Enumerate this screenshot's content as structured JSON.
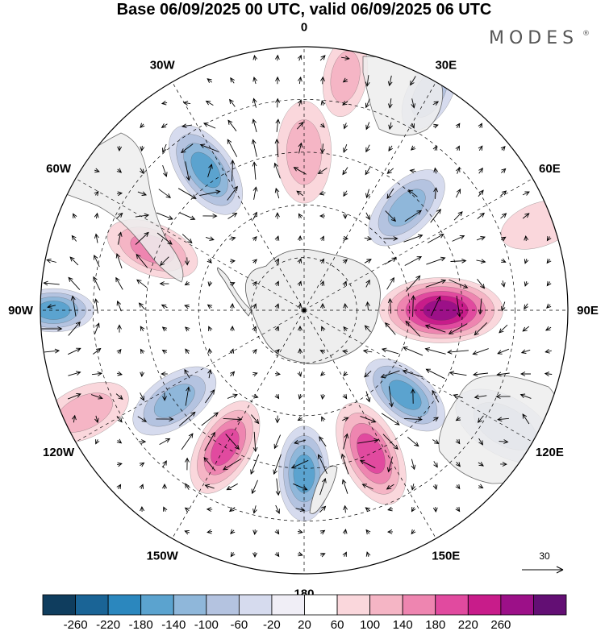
{
  "title": "Base 06/09/2025 00 UTC, valid 06/09/2025 06 UTC",
  "brand": {
    "name": "MODES",
    "mark": "®"
  },
  "longitude_labels": [
    {
      "lon": 0,
      "text": "0"
    },
    {
      "lon": 30,
      "text": "30E"
    },
    {
      "lon": 60,
      "text": "60E"
    },
    {
      "lon": 90,
      "text": "90E"
    },
    {
      "lon": 120,
      "text": "120E"
    },
    {
      "lon": 150,
      "text": "150E"
    },
    {
      "lon": 180,
      "text": "180"
    },
    {
      "lon": -150,
      "text": "150W"
    },
    {
      "lon": -120,
      "text": "120W"
    },
    {
      "lon": -90,
      "text": "90W"
    },
    {
      "lon": -60,
      "text": "60W"
    },
    {
      "lon": -30,
      "text": "30W"
    }
  ],
  "reference_vector": {
    "magnitude": "30"
  },
  "colorbar": {
    "colors": [
      "#0f3d5e",
      "#1a6496",
      "#2b87be",
      "#5ba3cf",
      "#8fb7da",
      "#b4c3e0",
      "#d6dbee",
      "#f0eef6",
      "#ffffff",
      "#fad7dc",
      "#f5b5c5",
      "#ee85b0",
      "#e14a9f",
      "#c81c8a",
      "#9c1088",
      "#630f74"
    ],
    "labels": [
      "-260",
      "-220",
      "-180",
      "-140",
      "-100",
      "-60",
      "-20",
      "20",
      "60",
      "100",
      "140",
      "180",
      "220",
      "260"
    ]
  },
  "field": {
    "description_variable": "geopotential height anomaly with wind vectors",
    "anomalies": [
      {
        "lon": 90,
        "lat_ring": 0.52,
        "value": 220,
        "spread": 0.16
      },
      {
        "lon": 130,
        "lat_ring": 0.5,
        "value": -160,
        "spread": 0.12
      },
      {
        "lon": 155,
        "lat_ring": 0.6,
        "value": 150,
        "spread": 0.14
      },
      {
        "lon": 180,
        "lat_ring": 0.62,
        "value": -140,
        "spread": 0.12
      },
      {
        "lon": -150,
        "lat_ring": 0.6,
        "value": 170,
        "spread": 0.13
      },
      {
        "lon": -125,
        "lat_ring": 0.6,
        "value": -110,
        "spread": 0.12
      },
      {
        "lon": -115,
        "lat_ring": 0.92,
        "value": 60,
        "spread": 0.12
      },
      {
        "lon": -90,
        "lat_ring": 0.95,
        "value": -140,
        "spread": 0.1
      },
      {
        "lon": -68,
        "lat_ring": 0.62,
        "value": 120,
        "spread": 0.12
      },
      {
        "lon": -35,
        "lat_ring": 0.65,
        "value": -160,
        "spread": 0.13
      },
      {
        "lon": 0,
        "lat_ring": 0.6,
        "value": 90,
        "spread": 0.13
      },
      {
        "lon": 10,
        "lat_ring": 0.9,
        "value": 60,
        "spread": 0.1
      },
      {
        "lon": 45,
        "lat_ring": 0.55,
        "value": -110,
        "spread": 0.12
      },
      {
        "lon": 30,
        "lat_ring": 0.95,
        "value": -60,
        "spread": 0.1
      },
      {
        "lon": 70,
        "lat_ring": 0.95,
        "value": 40,
        "spread": 0.1
      },
      {
        "lon": 120,
        "lat_ring": 0.88,
        "value": -80,
        "spread": 0.14
      }
    ]
  }
}
